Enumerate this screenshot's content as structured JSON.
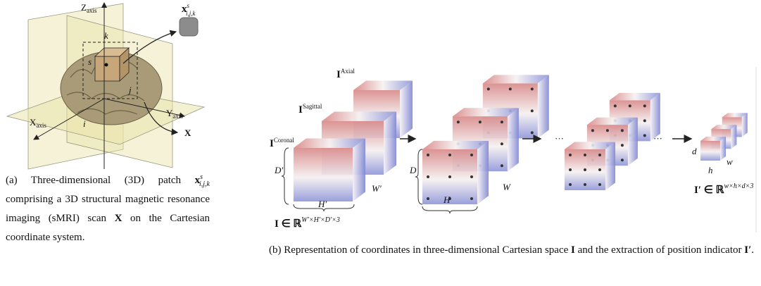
{
  "panel_a": {
    "axis_labels": {
      "z": {
        "base": "Z",
        "sub": "axis"
      },
      "y": {
        "base": "Y",
        "sub": "axis"
      },
      "x": {
        "base": "X",
        "sub": "axis"
      }
    },
    "index_labels": {
      "k": "k",
      "s": "s",
      "i": "i",
      "j": "j"
    },
    "patch_label": {
      "base": "x",
      "sup": "s",
      "sub": "i,j,k"
    },
    "scan_label": "X",
    "caption": {
      "prefix": "(a) Three-dimensional (3D) patch ",
      "patch": {
        "base": "x",
        "sup": "s",
        "sub": "i,j,k"
      },
      "middle": " comprising a 3D structural magnetic resonance imaging (sMRI) scan ",
      "scan": "X",
      "suffix": " on the Cartesian coordinate system."
    }
  },
  "panel_b": {
    "planes": [
      {
        "base": "I",
        "sup": "Axial"
      },
      {
        "base": "I",
        "sup": "Sagittal"
      },
      {
        "base": "I",
        "sup": "Coronal"
      }
    ],
    "input_dims": {
      "depth": "D′",
      "height": "H′",
      "width": "W′"
    },
    "input_space": {
      "base": "I ∈ ℝ",
      "sup": "W′×H′×D′×3"
    },
    "stage_dims": {
      "depth": "D",
      "height": "H",
      "width": "W"
    },
    "ellipsis": [
      "···",
      "···"
    ],
    "output_dims": {
      "depth": "d",
      "height": "h",
      "width": "w"
    },
    "output_space": {
      "base": "I′ ∈ ℝ",
      "sup": "w×h×d×3"
    },
    "caption": {
      "prefix": "(b) Representation of coordinates in three-dimensional Cartesian space ",
      "space": "I",
      "middle": " and the extraction of position indicator ",
      "indicator": "I′",
      "suffix": "."
    }
  }
}
